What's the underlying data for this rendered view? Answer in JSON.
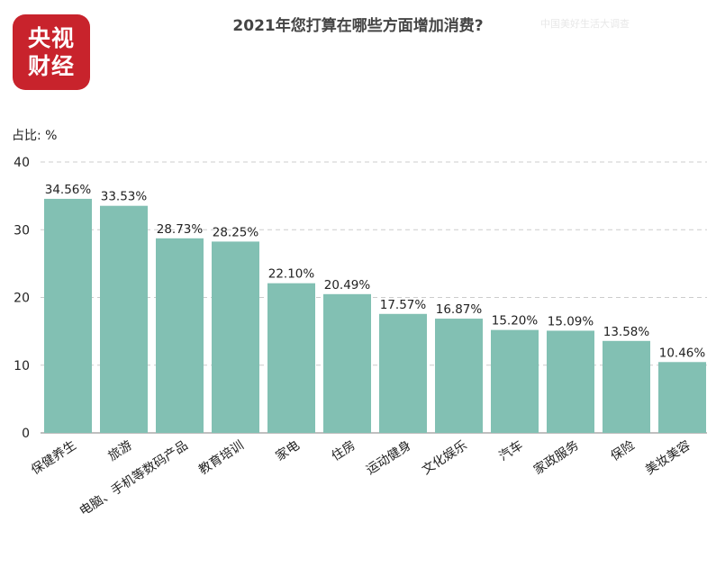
{
  "logo": {
    "line1": "央视",
    "line2": "财经"
  },
  "watermark": "中国美好生活大调查",
  "chart_data": {
    "type": "bar",
    "title": "2021年您打算在哪些方面增加消费?",
    "unit_label": "占比:  %",
    "categories": [
      "保健养生",
      "旅游",
      "电脑、手机等数码产品",
      "教育培训",
      "家电",
      "住房",
      "运动健身",
      "文化娱乐",
      "汽车",
      "家政服务",
      "保险",
      "美妆美容"
    ],
    "values": [
      34.56,
      33.53,
      28.73,
      28.25,
      22.1,
      20.49,
      17.57,
      16.87,
      15.2,
      15.09,
      13.58,
      10.46
    ],
    "value_labels": [
      "34.56%",
      "33.53%",
      "28.73%",
      "28.25%",
      "22.10%",
      "20.49%",
      "17.57%",
      "16.87%",
      "15.20%",
      "15.09%",
      "13.58%",
      "10.46%"
    ],
    "yticks": [
      0,
      10,
      20,
      30,
      40
    ],
    "ylim": [
      0,
      40
    ],
    "bar_color": "#82c0b3",
    "grid": true
  }
}
